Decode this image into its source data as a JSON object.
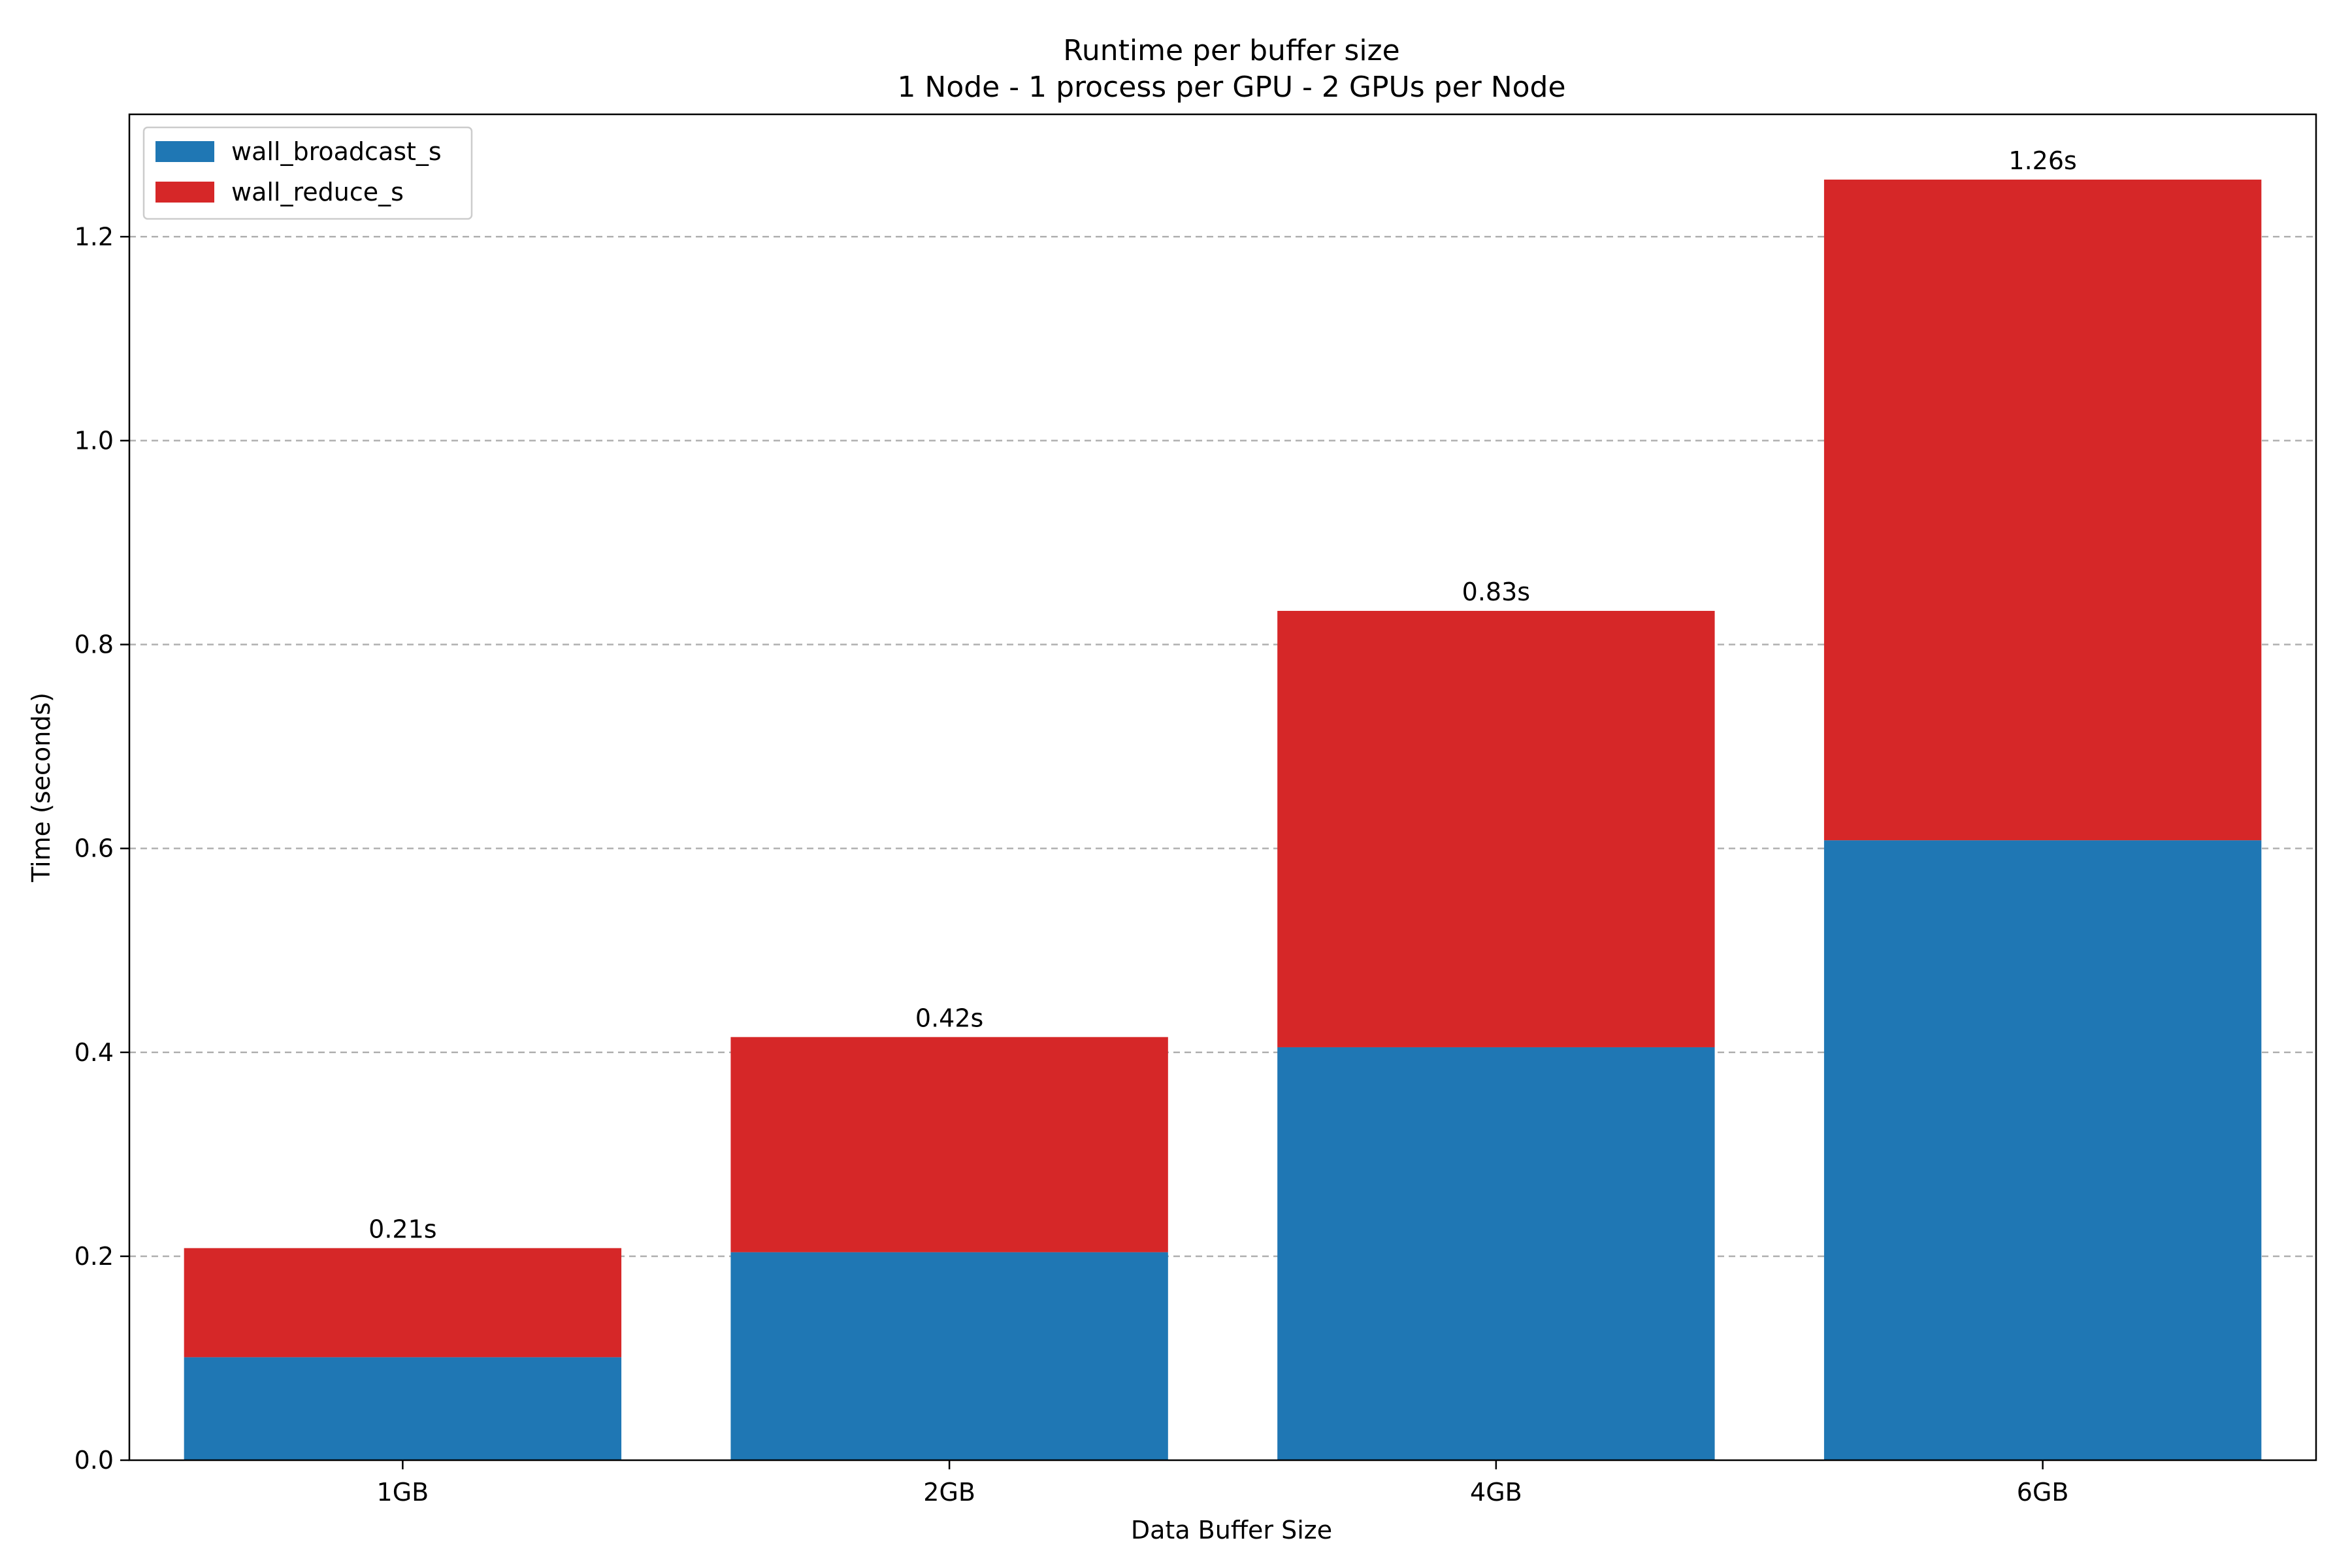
{
  "chart_data": {
    "type": "bar",
    "stacked": true,
    "title": "Runtime per buffer size",
    "subtitle": "1 Node - 1 process per GPU - 2 GPUs per Node",
    "xlabel": "Data Buffer Size",
    "ylabel": "Time (seconds)",
    "categories": [
      "1GB",
      "2GB",
      "4GB",
      "6GB"
    ],
    "series": [
      {
        "name": "wall_broadcast_s",
        "color": "#1f77b4",
        "values": [
          0.101,
          0.204,
          0.405,
          0.608
        ]
      },
      {
        "name": "wall_reduce_s",
        "color": "#d62728",
        "values": [
          0.107,
          0.211,
          0.428,
          0.648
        ]
      }
    ],
    "totals_labels": [
      "0.21s",
      "0.42s",
      "0.83s",
      "1.26s"
    ],
    "ylim": [
      0,
      1.32
    ],
    "yticks": [
      0.0,
      0.2,
      0.4,
      0.6,
      0.8,
      1.0,
      1.2
    ],
    "ytick_labels": [
      "0.0",
      "0.2",
      "0.4",
      "0.6",
      "0.8",
      "1.0",
      "1.2"
    ],
    "grid": {
      "axis": "y",
      "style": "dashed"
    },
    "legend": {
      "position": "top-left"
    }
  }
}
